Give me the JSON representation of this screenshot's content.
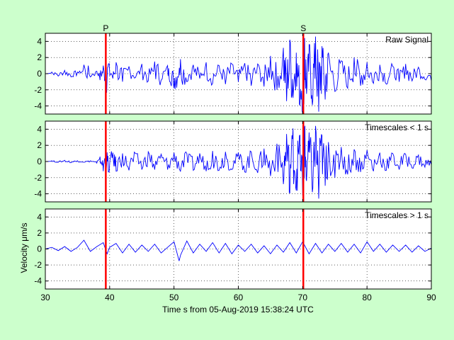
{
  "figure": {
    "xlabel": "Time s from 05-Aug-2019 15:38:24 UTC",
    "ylabel": "Velocity μm/s",
    "background": "#ccffcc",
    "axes_background": "#ffffff",
    "signal_color": "#0000ff",
    "pick_color": "#ff0000"
  },
  "chart_data": [
    {
      "type": "line",
      "title": "Raw Signal",
      "xlim": [
        30,
        90
      ],
      "ylim": [
        -5,
        5
      ],
      "xticks": [
        30,
        40,
        50,
        60,
        70,
        80,
        90
      ],
      "yticks": [
        4,
        2,
        0,
        -2,
        -4
      ],
      "grid": true,
      "picks": [
        {
          "label": "P",
          "x": 39.4
        },
        {
          "label": "S",
          "x": 70.1
        }
      ],
      "series": [
        {
          "color": "#0000ff",
          "x": [
            30,
            31,
            32,
            33,
            34,
            35,
            36,
            37,
            38,
            38.5,
            39,
            39.4,
            39.8,
            40.5,
            41,
            42,
            43,
            44,
            45,
            46,
            47,
            48,
            49,
            49.5,
            50,
            50.5,
            51,
            52,
            53,
            54,
            55,
            56,
            57,
            58,
            59,
            60,
            61,
            62,
            63,
            64,
            65,
            66,
            67,
            67.5,
            68,
            68.5,
            69,
            69.5,
            70,
            70.3,
            70.6,
            71,
            71.5,
            72,
            72.5,
            73,
            73.5,
            74,
            75,
            76,
            77,
            78,
            79,
            80,
            81,
            82,
            83,
            84,
            85,
            86,
            87,
            88,
            89,
            90
          ],
          "y": [
            0,
            0.2,
            -0.3,
            0.4,
            -0.4,
            0.2,
            1.1,
            -0.4,
            0.3,
            -0.8,
            1.0,
            -2.4,
            1.2,
            -0.6,
            1.4,
            -1.0,
            0.9,
            -0.5,
            1.2,
            -0.9,
            1.5,
            -0.8,
            1.0,
            -1.3,
            -1.8,
            -0.9,
            1.8,
            -1.0,
            1.1,
            -0.6,
            1.4,
            -1.2,
            1.0,
            -1.3,
            1.2,
            -1.0,
            1.3,
            -1.5,
            1.2,
            -1.6,
            2.2,
            -2.0,
            3.2,
            -3.4,
            4.2,
            -3.0,
            2.6,
            -3.8,
            -4.9,
            4.4,
            -2.5,
            3.6,
            -3.9,
            4.6,
            -4.7,
            3.4,
            -3.2,
            2.6,
            -2.2,
            1.6,
            -1.8,
            2.0,
            -1.5,
            1.4,
            -1.2,
            1.1,
            -1.3,
            0.9,
            -1.0,
            1.2,
            -0.9,
            0.8,
            -0.7,
            -0.9
          ]
        }
      ]
    },
    {
      "type": "line",
      "title": "Timescales < 1 s",
      "xlim": [
        30,
        90
      ],
      "ylim": [
        -5,
        5
      ],
      "xticks": [
        30,
        40,
        50,
        60,
        70,
        80,
        90
      ],
      "yticks": [
        4,
        2,
        0,
        -2,
        -4
      ],
      "grid": true,
      "picks": [
        {
          "x": 39.4
        },
        {
          "x": 70.1
        }
      ],
      "series": [
        {
          "color": "#0000ff",
          "x": [
            30,
            31,
            32,
            33,
            34,
            35,
            36,
            37,
            38,
            38.5,
            39,
            39.4,
            39.8,
            40.5,
            41,
            42,
            43,
            44,
            45,
            46,
            47,
            48,
            49,
            50,
            51,
            52,
            53,
            54,
            55,
            56,
            57,
            58,
            59,
            60,
            61,
            62,
            63,
            64,
            65,
            66,
            67,
            67.5,
            68,
            68.5,
            69,
            69.5,
            70,
            70.3,
            70.6,
            71,
            71.5,
            72,
            72.5,
            73,
            73.5,
            74,
            75,
            76,
            77,
            78,
            79,
            80,
            81,
            82,
            83,
            84,
            85,
            86,
            87,
            88,
            89,
            90
          ],
          "y": [
            0,
            0.1,
            -0.1,
            0.15,
            -0.15,
            0.1,
            -0.1,
            0.1,
            -0.2,
            0.6,
            -1.2,
            1.4,
            -1.3,
            1.1,
            -1.2,
            1.0,
            -1.1,
            1.0,
            -1.0,
            1.2,
            -1.0,
            0.9,
            -1.0,
            1.1,
            -1.2,
            1.0,
            -1.1,
            1.0,
            -1.2,
            1.3,
            -1.1,
            1.2,
            -1.0,
            1.1,
            -1.3,
            1.2,
            -1.4,
            1.6,
            -1.8,
            2.2,
            -2.8,
            3.4,
            -3.9,
            4.1,
            -3.6,
            3.2,
            -4.2,
            4.3,
            -2.4,
            3.6,
            -3.8,
            4.4,
            -4.6,
            3.2,
            -3.0,
            2.4,
            -2.0,
            1.8,
            -1.6,
            1.5,
            -1.3,
            1.4,
            -1.2,
            1.1,
            -1.1,
            1.0,
            -1.0,
            0.9,
            -0.8,
            0.8,
            -0.7,
            -0.4
          ]
        }
      ]
    },
    {
      "type": "line",
      "title": "Timescales > 1 s",
      "xlim": [
        30,
        90
      ],
      "ylim": [
        -5,
        5
      ],
      "xticks": [
        30,
        40,
        50,
        60,
        70,
        80,
        90
      ],
      "xticklabels": [
        "30",
        "40",
        "50",
        "60",
        "70",
        "80",
        "90"
      ],
      "yticks": [
        4,
        2,
        0,
        -2,
        -4
      ],
      "grid": true,
      "picks": [
        {
          "x": 39.4
        },
        {
          "x": 70.1
        }
      ],
      "series": [
        {
          "color": "#0000ff",
          "x": [
            30,
            31,
            32,
            33,
            34,
            35,
            36,
            37,
            38,
            39,
            39.6,
            40,
            41,
            42,
            43,
            44,
            45,
            46,
            47,
            48,
            49,
            50,
            50.8,
            51,
            52,
            53,
            54,
            55,
            56,
            57,
            58,
            59,
            60,
            61,
            62,
            63,
            64,
            65,
            66,
            67,
            68,
            69,
            70,
            71,
            72,
            73,
            74,
            75,
            76,
            77,
            78,
            79,
            80,
            81,
            82,
            83,
            84,
            85,
            86,
            87,
            88,
            89,
            90
          ],
          "y": [
            0,
            0.2,
            -0.2,
            0.3,
            -0.3,
            0.2,
            1.1,
            -0.3,
            0.3,
            0.8,
            -0.6,
            0.2,
            0.7,
            -0.5,
            0.6,
            -0.4,
            0.5,
            -0.3,
            0.6,
            -0.5,
            0.2,
            0.9,
            -1.5,
            -0.8,
            1.0,
            -0.5,
            0.6,
            -0.3,
            0.8,
            -0.5,
            0.7,
            -0.6,
            0.5,
            -0.3,
            0.6,
            -0.5,
            0.4,
            -0.6,
            0.5,
            -0.4,
            0.8,
            -0.5,
            0.9,
            -0.6,
            0.7,
            -0.5,
            0.6,
            -0.3,
            0.7,
            -0.4,
            0.6,
            -0.5,
            0.9,
            -0.3,
            0.6,
            -0.4,
            0.5,
            -0.3,
            0.5,
            -0.4,
            0.4,
            -0.3,
            0.1
          ]
        }
      ]
    }
  ]
}
